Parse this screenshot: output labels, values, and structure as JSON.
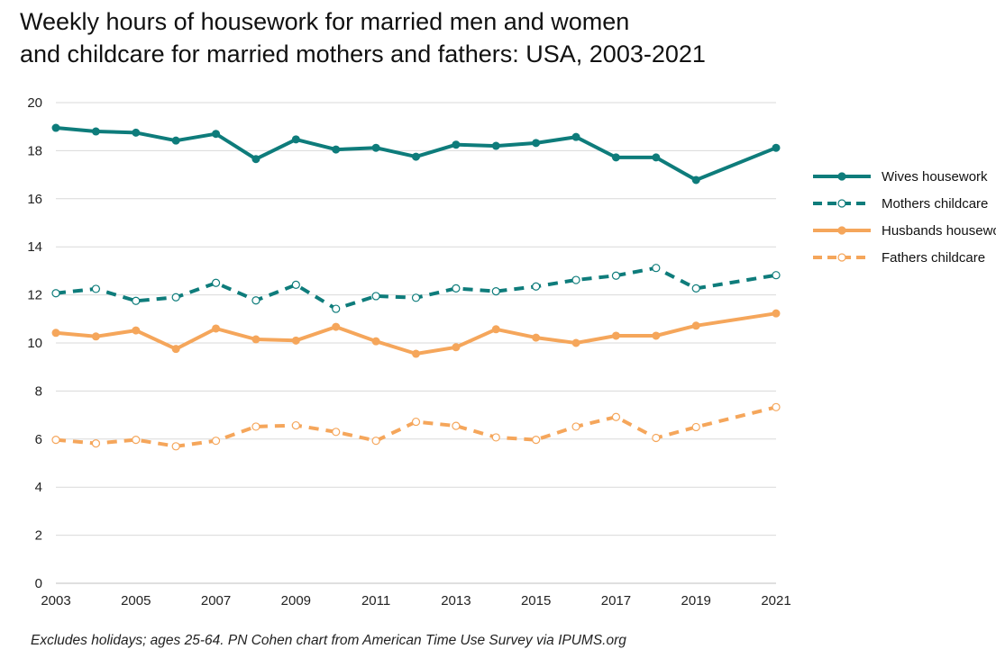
{
  "title_lines": [
    "Weekly hours of housework for married men and women",
    "and childcare for married mothers and fathers: USA, 2003-2021"
  ],
  "note": "Excludes holidays; ages 25-64. PN Cohen chart from American Time Use Survey via IPUMS.org",
  "chart_data": {
    "type": "line",
    "title": "Weekly hours of housework for married men and women and childcare for married mothers and fathers: USA, 2003-2021",
    "xlabel": "",
    "ylabel": "",
    "xlim": [
      2003,
      2021
    ],
    "ylim": [
      0,
      20
    ],
    "x_ticks": [
      2003,
      2005,
      2007,
      2009,
      2011,
      2013,
      2015,
      2017,
      2019,
      2021
    ],
    "y_ticks": [
      0,
      2,
      4,
      6,
      8,
      10,
      12,
      14,
      16,
      18,
      20
    ],
    "grid": "horizontal",
    "legend_position": "right",
    "series": [
      {
        "name": "Wives housework",
        "color": "#0e7c7b",
        "line_style": "solid",
        "marker": "filled-circle",
        "x": [
          2003,
          2004,
          2005,
          2006,
          2007,
          2008,
          2009,
          2010,
          2011,
          2012,
          2013,
          2014,
          2015,
          2016,
          2017,
          2018,
          2019,
          2021
        ],
        "values": [
          18.95,
          18.8,
          18.75,
          18.42,
          18.7,
          17.65,
          18.47,
          18.05,
          18.12,
          17.75,
          18.25,
          18.2,
          18.32,
          18.57,
          17.72,
          17.72,
          16.78,
          18.12
        ]
      },
      {
        "name": "Mothers childcare",
        "color": "#0e7c7b",
        "line_style": "dashed",
        "marker": "hollow-circle",
        "x": [
          2003,
          2004,
          2005,
          2006,
          2007,
          2008,
          2009,
          2010,
          2011,
          2012,
          2013,
          2014,
          2015,
          2016,
          2017,
          2018,
          2019,
          2021
        ],
        "values": [
          12.07,
          12.25,
          11.75,
          11.9,
          12.5,
          11.77,
          12.42,
          11.42,
          11.95,
          11.88,
          12.27,
          12.15,
          12.35,
          12.62,
          12.8,
          13.12,
          12.27,
          12.82
        ]
      },
      {
        "name": "Husbands housework",
        "color": "#f5a65b",
        "line_style": "solid",
        "marker": "filled-circle",
        "x": [
          2003,
          2004,
          2005,
          2006,
          2007,
          2008,
          2009,
          2010,
          2011,
          2012,
          2013,
          2014,
          2015,
          2016,
          2017,
          2018,
          2019,
          2021
        ],
        "values": [
          10.42,
          10.27,
          10.52,
          9.75,
          10.6,
          10.15,
          10.1,
          10.67,
          10.07,
          9.55,
          9.82,
          10.57,
          10.22,
          10.0,
          10.3,
          10.3,
          10.72,
          11.23
        ]
      },
      {
        "name": "Fathers childcare",
        "color": "#f5a65b",
        "line_style": "dashed",
        "marker": "hollow-circle",
        "x": [
          2003,
          2004,
          2005,
          2006,
          2007,
          2008,
          2009,
          2010,
          2011,
          2012,
          2013,
          2014,
          2015,
          2016,
          2017,
          2018,
          2019,
          2021
        ],
        "values": [
          5.97,
          5.82,
          5.97,
          5.7,
          5.93,
          6.52,
          6.57,
          6.3,
          5.93,
          6.72,
          6.55,
          6.07,
          5.97,
          6.52,
          6.92,
          6.05,
          6.5,
          7.33
        ]
      }
    ]
  }
}
